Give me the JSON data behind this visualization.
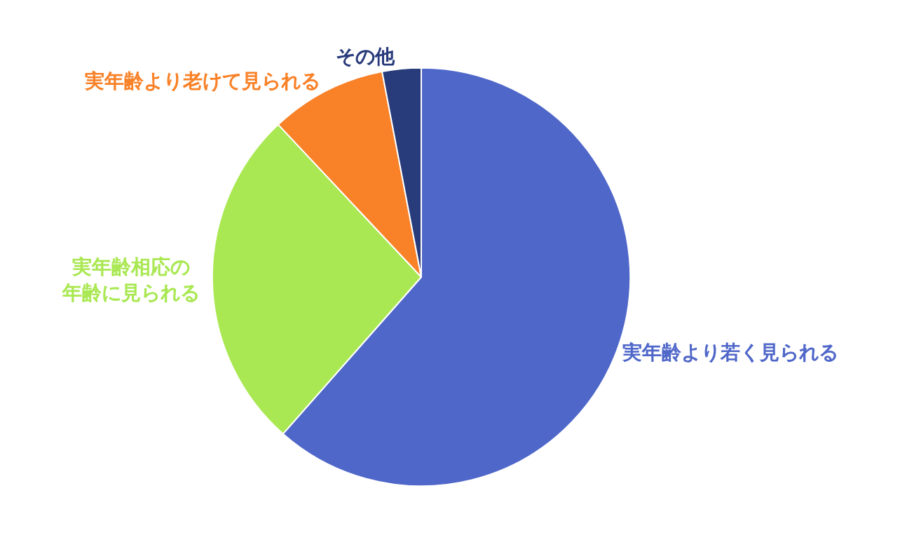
{
  "chart_data": {
    "type": "pie",
    "categories": [
      "実年齢より若く見られる",
      "実年齢相応の年齢に見られる",
      "実年齢より老けて見られる",
      "その他"
    ],
    "values": [
      61.5,
      26.5,
      9,
      3
    ],
    "colors": [
      "#4f67c9",
      "#a9e852",
      "#f98127",
      "#283b7a"
    ],
    "legend": false
  }
}
